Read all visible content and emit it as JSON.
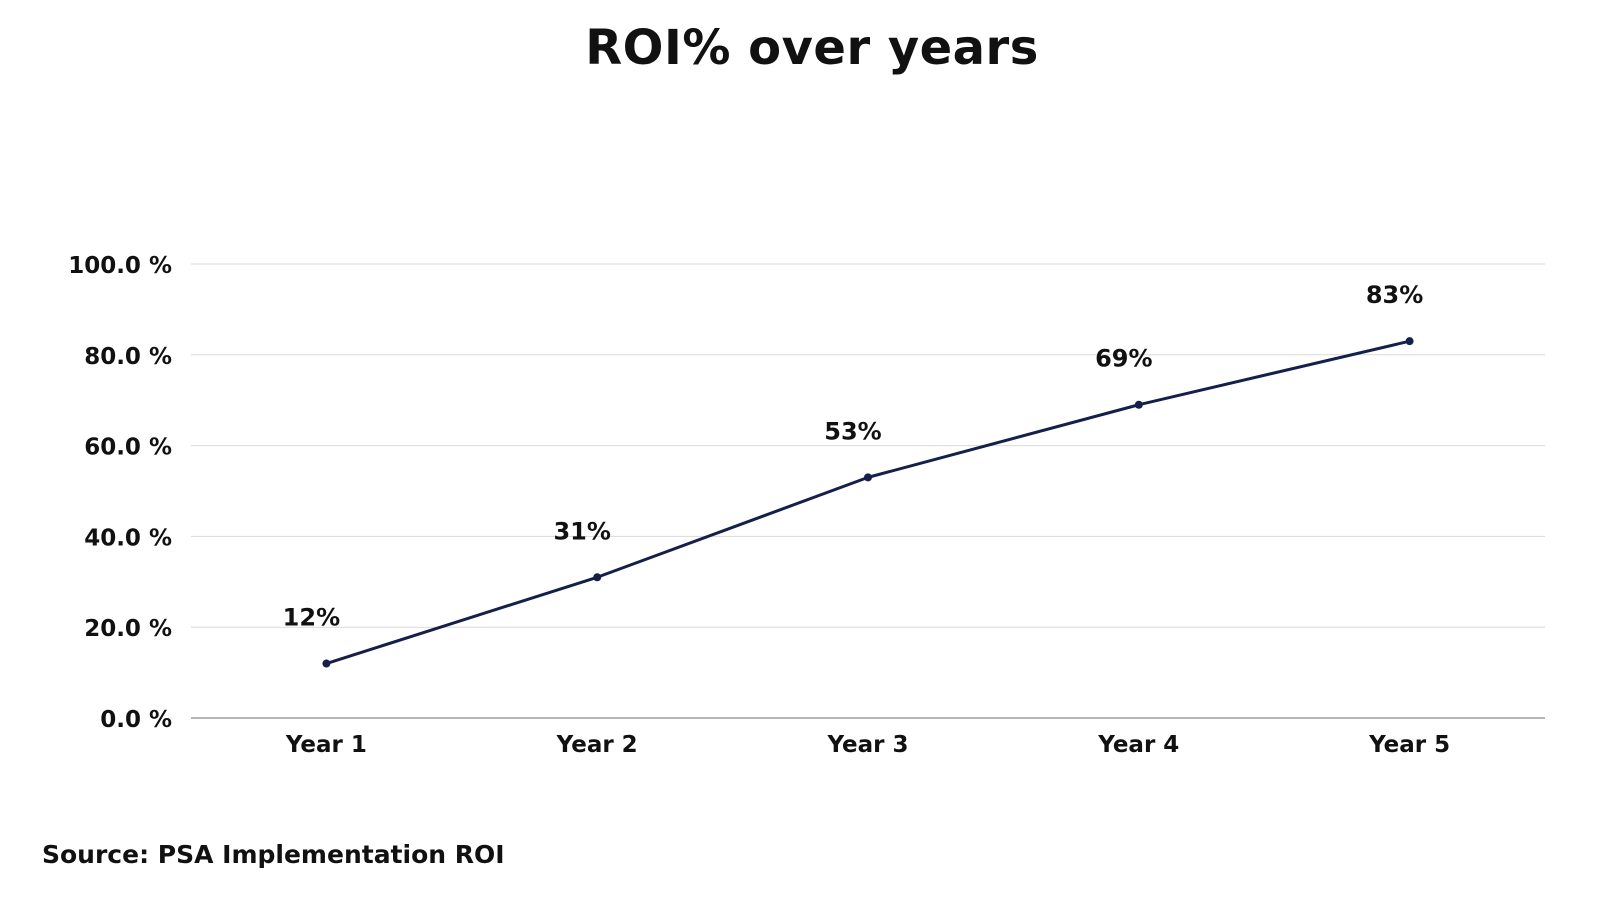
{
  "source_text": "Source: PSA Implementation ROI",
  "chart_data": {
    "type": "line",
    "title": "ROI% over years",
    "xlabel": "",
    "ylabel": "",
    "categories": [
      "Year 1",
      "Year 2",
      "Year 3",
      "Year 4",
      "Year 5"
    ],
    "series": [
      {
        "values": [
          12,
          31,
          53,
          69,
          83
        ],
        "data_labels": [
          "12%",
          "31%",
          "53%",
          "69%",
          "83%"
        ]
      }
    ],
    "ylim": [
      0,
      100
    ],
    "yticks": [
      0,
      20,
      40,
      60,
      80,
      100
    ],
    "ytick_labels": [
      "0.0 %",
      "20.0 %",
      "40.0 %",
      "60.0 %",
      "80.0 %",
      "100.0 %"
    ],
    "grid": true,
    "legend": "none",
    "colors": {
      "line": "#14204a",
      "grid": "#d9d9d9",
      "axis": "#9e9e9e",
      "text": "#111111"
    }
  }
}
